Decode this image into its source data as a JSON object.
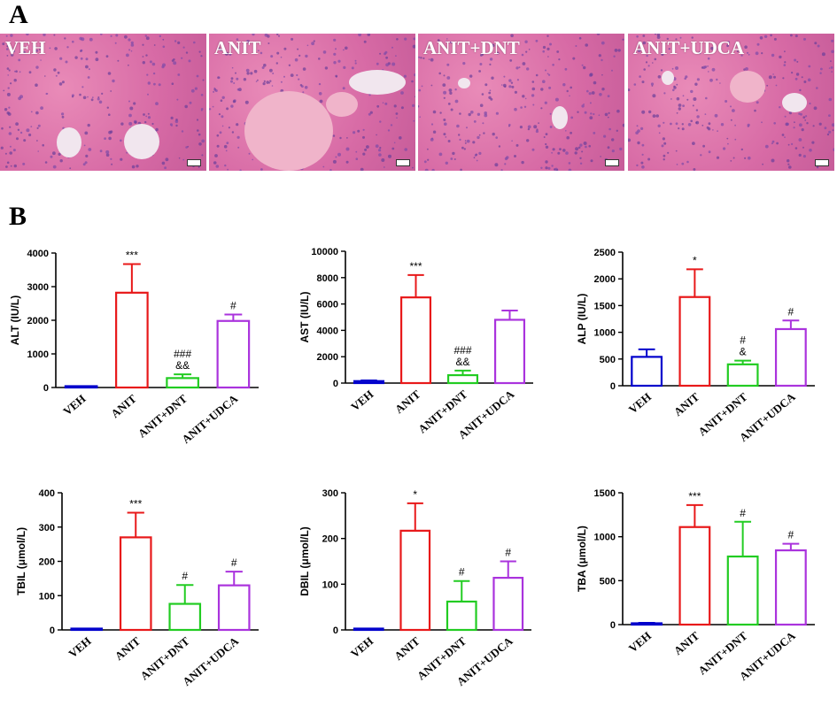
{
  "panels": {
    "a_label": "A",
    "b_label": "B"
  },
  "histology": [
    {
      "label": "VEH"
    },
    {
      "label": "ANIT"
    },
    {
      "label": "ANIT+DNT"
    },
    {
      "label": "ANIT+UDCA"
    }
  ],
  "colors": {
    "VEH": "#0000cc",
    "ANIT": "#e8191a",
    "ANIT+DNT": "#22cc22",
    "ANIT+UDCA": "#aa33dd"
  },
  "chart_data": [
    {
      "type": "bar",
      "categories": [
        "VEH",
        "ANIT",
        "ANIT+DNT",
        "ANIT+UDCA"
      ],
      "values": [
        30,
        2820,
        280,
        1980
      ],
      "errors": [
        10,
        850,
        110,
        190
      ],
      "annotations": [
        [],
        [
          "***"
        ],
        [
          "###",
          "&&"
        ],
        [
          "#"
        ]
      ],
      "ylabel": "ALT (IU/L)",
      "ylim": [
        0,
        4000
      ],
      "yticks": [
        "0",
        "1000",
        "2000",
        "3000",
        "4000"
      ]
    },
    {
      "type": "bar",
      "categories": [
        "VEH",
        "ANIT",
        "ANIT+DNT",
        "ANIT+UDCA"
      ],
      "values": [
        150,
        6500,
        600,
        4800
      ],
      "errors": [
        50,
        1700,
        350,
        700
      ],
      "annotations": [
        [],
        [
          "***"
        ],
        [
          "###",
          "&&"
        ],
        []
      ],
      "ylabel": "AST (IU/L)",
      "ylim": [
        0,
        10000
      ],
      "yticks": [
        "0",
        "2000",
        "4000",
        "6000",
        "8000",
        "10000"
      ]
    },
    {
      "type": "bar",
      "categories": [
        "VEH",
        "ANIT",
        "ANIT+DNT",
        "ANIT+UDCA"
      ],
      "values": [
        540,
        1660,
        400,
        1060
      ],
      "errors": [
        140,
        520,
        70,
        160
      ],
      "annotations": [
        [],
        [
          "*"
        ],
        [
          "#",
          "&"
        ],
        [
          "#"
        ]
      ],
      "ylabel": "ALP (IU/L)",
      "ylim": [
        0,
        2500
      ],
      "yticks": [
        "0",
        "500",
        "1000",
        "1500",
        "2000",
        "2500"
      ]
    },
    {
      "type": "bar",
      "categories": [
        "VEH",
        "ANIT",
        "ANIT+DNT",
        "ANIT+UDCA"
      ],
      "values": [
        2,
        270,
        76,
        130
      ],
      "errors": [
        1,
        72,
        55,
        40
      ],
      "annotations": [
        [],
        [
          "***"
        ],
        [
          "#"
        ],
        [
          "#"
        ]
      ],
      "ylabel": "TBIL (μmol/L)",
      "ylim": [
        0,
        400
      ],
      "yticks": [
        "0",
        "100",
        "200",
        "300",
        "400"
      ]
    },
    {
      "type": "bar",
      "categories": [
        "VEH",
        "ANIT",
        "ANIT+DNT",
        "ANIT+UDCA"
      ],
      "values": [
        0,
        217,
        62,
        114
      ],
      "errors": [
        0,
        60,
        45,
        36
      ],
      "annotations": [
        [],
        [
          "*"
        ],
        [
          "#"
        ],
        [
          "#"
        ]
      ],
      "ylabel": "DBIL (μmol/L)",
      "ylim": [
        0,
        300
      ],
      "yticks": [
        "0",
        "100",
        "200",
        "300"
      ]
    },
    {
      "type": "bar",
      "categories": [
        "VEH",
        "ANIT",
        "ANIT+DNT",
        "ANIT+UDCA"
      ],
      "values": [
        15,
        1110,
        775,
        845
      ],
      "errors": [
        5,
        250,
        395,
        75
      ],
      "annotations": [
        [],
        [
          "***"
        ],
        [
          "#"
        ],
        [
          "#"
        ]
      ],
      "ylabel": "TBA (μmol/L)",
      "ylim": [
        0,
        1500
      ],
      "yticks": [
        "0",
        "500",
        "1000",
        "1500"
      ]
    }
  ]
}
